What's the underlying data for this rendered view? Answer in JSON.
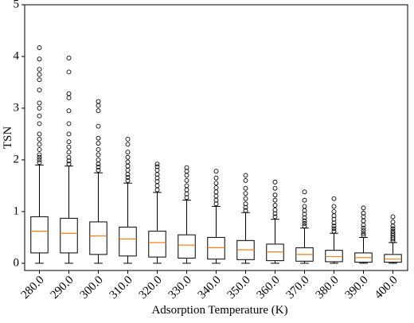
{
  "chart_data": {
    "type": "box",
    "xlabel": "Adsorption Temperature (K)",
    "ylabel": "TSN",
    "categories": [
      "280.0",
      "290.0",
      "300.0",
      "310.0",
      "320.0",
      "330.0",
      "340.0",
      "350.0",
      "360.0",
      "370.0",
      "380.0",
      "390.0",
      "400.0"
    ],
    "box_color": "#000000",
    "median_color": "#ff7f0e",
    "ylim": [
      -0.14,
      5
    ],
    "yticks": [
      0,
      1,
      2,
      3,
      4,
      5
    ],
    "boxes": [
      {
        "whislo": 0,
        "q1": 0.2,
        "med": 0.62,
        "q3": 0.9,
        "whishi": 1.9,
        "fliers": [
          1.95,
          2.0,
          2.05,
          2.1,
          2.2,
          2.3,
          2.4,
          2.5,
          2.7,
          2.85,
          3.0,
          3.1,
          3.35,
          3.55,
          3.65,
          3.75,
          3.95,
          4.17
        ]
      },
      {
        "whislo": 0,
        "q1": 0.2,
        "med": 0.58,
        "q3": 0.87,
        "whishi": 1.88,
        "fliers": [
          1.92,
          1.98,
          2.05,
          2.15,
          2.25,
          2.35,
          2.5,
          2.7,
          2.95,
          3.2,
          3.28,
          3.7,
          3.97
        ]
      },
      {
        "whislo": 0,
        "q1": 0.17,
        "med": 0.53,
        "q3": 0.8,
        "whishi": 1.75,
        "fliers": [
          1.8,
          1.86,
          1.92,
          2.0,
          2.1,
          2.2,
          2.32,
          2.42,
          2.65,
          2.95,
          3.05,
          3.13
        ]
      },
      {
        "whislo": 0,
        "q1": 0.14,
        "med": 0.47,
        "q3": 0.7,
        "whishi": 1.55,
        "fliers": [
          1.6,
          1.66,
          1.72,
          1.8,
          1.88,
          1.96,
          2.05,
          2.15,
          2.3,
          2.4
        ]
      },
      {
        "whislo": 0,
        "q1": 0.12,
        "med": 0.4,
        "q3": 0.62,
        "whishi": 1.37,
        "fliers": [
          1.42,
          1.5,
          1.58,
          1.65,
          1.72,
          1.8,
          1.87,
          1.92
        ]
      },
      {
        "whislo": 0,
        "q1": 0.1,
        "med": 0.35,
        "q3": 0.55,
        "whishi": 1.22,
        "fliers": [
          1.27,
          1.34,
          1.42,
          1.5,
          1.6,
          1.7,
          1.78,
          1.85
        ]
      },
      {
        "whislo": 0,
        "q1": 0.08,
        "med": 0.3,
        "q3": 0.5,
        "whishi": 1.1,
        "fliers": [
          1.15,
          1.22,
          1.3,
          1.38,
          1.46,
          1.55,
          1.65,
          1.78
        ]
      },
      {
        "whislo": 0,
        "q1": 0.07,
        "med": 0.26,
        "q3": 0.44,
        "whishi": 0.98,
        "fliers": [
          1.02,
          1.08,
          1.15,
          1.25,
          1.35,
          1.45,
          1.6,
          1.7
        ]
      },
      {
        "whislo": 0,
        "q1": 0.05,
        "med": 0.22,
        "q3": 0.37,
        "whishi": 0.85,
        "fliers": [
          0.9,
          0.96,
          1.03,
          1.12,
          1.22,
          1.32,
          1.45,
          1.57
        ]
      },
      {
        "whislo": 0,
        "q1": 0.04,
        "med": 0.17,
        "q3": 0.3,
        "whishi": 0.68,
        "fliers": [
          0.72,
          0.77,
          0.82,
          0.88,
          0.95,
          1.02,
          1.1,
          1.22,
          1.38
        ]
      },
      {
        "whislo": 0,
        "q1": 0.03,
        "med": 0.13,
        "q3": 0.25,
        "whishi": 0.58,
        "fliers": [
          0.62,
          0.67,
          0.72,
          0.78,
          0.85,
          0.92,
          1.0,
          1.1,
          1.25
        ]
      },
      {
        "whislo": 0,
        "q1": 0.02,
        "med": 0.11,
        "q3": 0.2,
        "whishi": 0.5,
        "fliers": [
          0.54,
          0.58,
          0.63,
          0.68,
          0.74,
          0.82,
          0.9,
          0.97,
          1.07
        ]
      },
      {
        "whislo": 0,
        "q1": 0.02,
        "med": 0.08,
        "q3": 0.17,
        "whishi": 0.4,
        "fliers": [
          0.43,
          0.47,
          0.5,
          0.54,
          0.58,
          0.62,
          0.67,
          0.72,
          0.8,
          0.9
        ]
      }
    ]
  }
}
